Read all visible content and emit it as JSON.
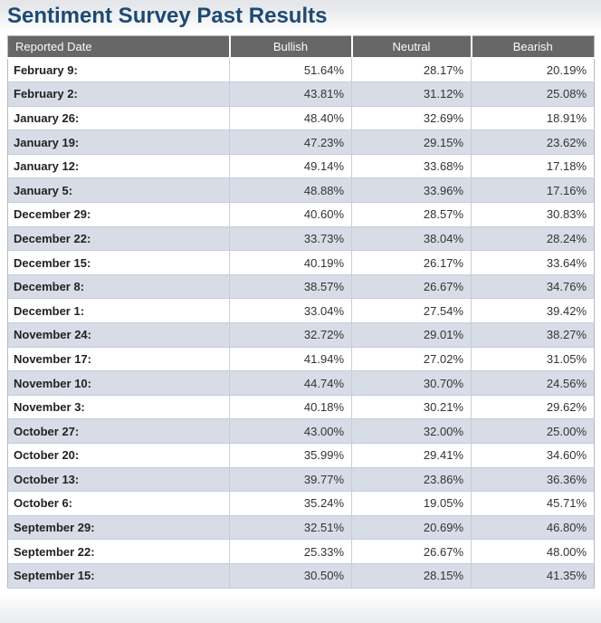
{
  "page": {
    "title": "Sentiment Survey Past Results"
  },
  "colors": {
    "title_text": "#1e4a72",
    "header_bg": "#676767",
    "header_text": "#fafafa",
    "row_alt_bg": "#d7dce6",
    "row_border": "#c6cedb",
    "cell_text": "#333333"
  },
  "table": {
    "columns": [
      "Reported Date",
      "Bullish",
      "Neutral",
      "Bearish"
    ],
    "row_keys": [
      "date",
      "bullish",
      "neutral",
      "bearish"
    ],
    "rows": [
      {
        "date": "February 9:",
        "bullish": "51.64%",
        "neutral": "28.17%",
        "bearish": "20.19%"
      },
      {
        "date": "February 2:",
        "bullish": "43.81%",
        "neutral": "31.12%",
        "bearish": "25.08%"
      },
      {
        "date": "January 26:",
        "bullish": "48.40%",
        "neutral": "32.69%",
        "bearish": "18.91%"
      },
      {
        "date": "January 19:",
        "bullish": "47.23%",
        "neutral": "29.15%",
        "bearish": "23.62%"
      },
      {
        "date": "January 12:",
        "bullish": "49.14%",
        "neutral": "33.68%",
        "bearish": "17.18%"
      },
      {
        "date": "January 5:",
        "bullish": "48.88%",
        "neutral": "33.96%",
        "bearish": "17.16%"
      },
      {
        "date": "December 29:",
        "bullish": "40.60%",
        "neutral": "28.57%",
        "bearish": "30.83%"
      },
      {
        "date": "December 22:",
        "bullish": "33.73%",
        "neutral": "38.04%",
        "bearish": "28.24%"
      },
      {
        "date": "December 15:",
        "bullish": "40.19%",
        "neutral": "26.17%",
        "bearish": "33.64%"
      },
      {
        "date": "December 8:",
        "bullish": "38.57%",
        "neutral": "26.67%",
        "bearish": "34.76%"
      },
      {
        "date": "December 1:",
        "bullish": "33.04%",
        "neutral": "27.54%",
        "bearish": "39.42%"
      },
      {
        "date": "November 24:",
        "bullish": "32.72%",
        "neutral": "29.01%",
        "bearish": "38.27%"
      },
      {
        "date": "November 17:",
        "bullish": "41.94%",
        "neutral": "27.02%",
        "bearish": "31.05%"
      },
      {
        "date": "November 10:",
        "bullish": "44.74%",
        "neutral": "30.70%",
        "bearish": "24.56%"
      },
      {
        "date": "November 3:",
        "bullish": "40.18%",
        "neutral": "30.21%",
        "bearish": "29.62%"
      },
      {
        "date": "October 27:",
        "bullish": "43.00%",
        "neutral": "32.00%",
        "bearish": "25.00%"
      },
      {
        "date": "October 20:",
        "bullish": "35.99%",
        "neutral": "29.41%",
        "bearish": "34.60%"
      },
      {
        "date": "October 13:",
        "bullish": "39.77%",
        "neutral": "23.86%",
        "bearish": "36.36%"
      },
      {
        "date": "October 6:",
        "bullish": "35.24%",
        "neutral": "19.05%",
        "bearish": "45.71%"
      },
      {
        "date": "September 29:",
        "bullish": "32.51%",
        "neutral": "20.69%",
        "bearish": "46.80%"
      },
      {
        "date": "September 22:",
        "bullish": "25.33%",
        "neutral": "26.67%",
        "bearish": "48.00%"
      },
      {
        "date": "September 15:",
        "bullish": "30.50%",
        "neutral": "28.15%",
        "bearish": "41.35%"
      }
    ]
  }
}
